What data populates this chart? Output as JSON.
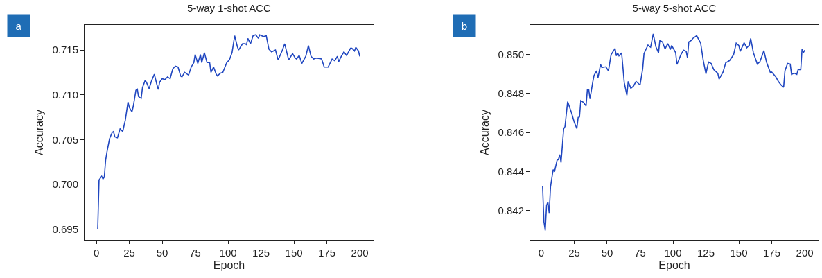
{
  "chart_data": [
    {
      "type": "line",
      "title": "5-way 1-shot ACC",
      "xlabel": "Epoch",
      "ylabel": "Accuracy",
      "annotations": [
        "a"
      ],
      "color": "#1f46c0",
      "xlim": [
        -9,
        210.5
      ],
      "ylim": [
        0.6938,
        0.7178
      ],
      "xticks": [
        0,
        25,
        50,
        75,
        100,
        125,
        150,
        175,
        200
      ],
      "yticks": [
        {
          "value": 0.695,
          "label": "0.695"
        },
        {
          "value": 0.7,
          "label": "0.700"
        },
        {
          "value": 0.705,
          "label": "0.705"
        },
        {
          "value": 0.71,
          "label": "0.710"
        },
        {
          "value": 0.715,
          "label": "0.715"
        }
      ],
      "x": [
        1,
        2,
        4,
        5,
        6,
        7,
        8,
        10,
        12,
        13,
        14,
        16,
        18,
        20,
        22,
        24,
        25,
        27,
        28,
        30,
        31,
        32,
        34,
        35,
        37,
        38,
        40,
        42,
        44,
        46,
        47,
        48,
        50,
        52,
        54,
        56,
        58,
        60,
        62,
        64,
        65,
        67,
        70,
        72,
        74,
        75,
        77,
        79,
        80,
        82,
        84,
        86,
        87,
        89,
        91,
        92,
        94,
        96,
        99,
        101,
        103,
        105,
        107,
        108,
        111,
        113,
        114,
        115,
        117,
        119,
        121,
        123,
        124,
        127,
        129,
        131,
        133,
        136,
        138,
        141,
        143,
        146,
        149,
        151,
        152,
        154,
        156,
        159,
        161,
        163,
        165,
        167,
        171,
        173,
        176,
        179,
        181,
        183,
        184,
        186,
        188,
        190,
        193,
        194,
        196,
        197,
        199,
        200
      ],
      "values": [
        0.695,
        0.7005,
        0.7009,
        0.7006,
        0.7008,
        0.7027,
        0.7036,
        0.7051,
        0.7058,
        0.7059,
        0.7053,
        0.7052,
        0.7062,
        0.7059,
        0.7072,
        0.7092,
        0.7086,
        0.7081,
        0.7087,
        0.7105,
        0.7107,
        0.7098,
        0.7096,
        0.7108,
        0.7116,
        0.7114,
        0.7107,
        0.7116,
        0.7123,
        0.7111,
        0.7106,
        0.7114,
        0.7118,
        0.7117,
        0.712,
        0.7118,
        0.7129,
        0.7132,
        0.7131,
        0.7121,
        0.712,
        0.7125,
        0.7122,
        0.7131,
        0.7136,
        0.7145,
        0.7135,
        0.7145,
        0.7136,
        0.7147,
        0.7136,
        0.7136,
        0.7125,
        0.7131,
        0.7123,
        0.7121,
        0.7124,
        0.7125,
        0.7136,
        0.7139,
        0.7147,
        0.7166,
        0.7154,
        0.715,
        0.7157,
        0.7157,
        0.7156,
        0.7163,
        0.7157,
        0.7166,
        0.7167,
        0.7163,
        0.7167,
        0.7165,
        0.7166,
        0.7151,
        0.7148,
        0.715,
        0.7139,
        0.7149,
        0.7157,
        0.7139,
        0.7146,
        0.7141,
        0.714,
        0.7144,
        0.7135,
        0.7143,
        0.7155,
        0.7143,
        0.714,
        0.7141,
        0.714,
        0.7131,
        0.7131,
        0.714,
        0.7138,
        0.7143,
        0.7137,
        0.7143,
        0.7148,
        0.7144,
        0.7152,
        0.7152,
        0.7149,
        0.7153,
        0.7149,
        0.7143
      ]
    },
    {
      "type": "line",
      "title": "5-way 5-shot ACC",
      "xlabel": "Epoch",
      "ylabel": "Accuracy",
      "annotations": [
        "b"
      ],
      "color": "#1f46c0",
      "xlim": [
        -8.4,
        210.5
      ],
      "ylim": [
        0.8405,
        0.8515
      ],
      "xticks": [
        0,
        25,
        50,
        75,
        100,
        125,
        150,
        175,
        200
      ],
      "yticks": [
        {
          "value": 0.842,
          "label": "0.842"
        },
        {
          "value": 0.844,
          "label": "0.844"
        },
        {
          "value": 0.846,
          "label": "0.846"
        },
        {
          "value": 0.848,
          "label": "0.848"
        },
        {
          "value": 0.85,
          "label": "0.850"
        }
      ],
      "x": [
        1,
        2,
        3,
        4,
        5,
        6,
        7,
        9,
        10,
        12,
        13,
        14,
        15,
        17,
        18,
        20,
        23,
        25,
        27,
        28,
        29,
        30,
        32,
        34,
        35,
        36,
        37,
        39,
        40,
        42,
        43,
        45,
        46,
        49,
        51,
        53,
        56,
        57,
        58,
        59,
        61,
        63,
        65,
        66,
        68,
        70,
        72,
        75,
        77,
        78,
        80,
        81,
        83,
        85,
        87,
        89,
        90,
        92,
        94,
        96,
        98,
        99,
        102,
        103,
        106,
        108,
        110,
        111,
        112,
        114,
        115,
        118,
        121,
        123,
        125,
        127,
        129,
        131,
        134,
        135,
        138,
        140,
        143,
        146,
        148,
        150,
        151,
        154,
        156,
        158,
        159,
        161,
        164,
        166,
        169,
        171,
        174,
        175,
        178,
        180,
        182,
        184,
        185,
        187,
        189,
        190,
        192,
        194,
        195,
        197,
        198,
        199,
        200
      ],
      "values": [
        0.84323,
        0.84143,
        0.84098,
        0.84226,
        0.84244,
        0.84188,
        0.84321,
        0.8441,
        0.84398,
        0.84458,
        0.84461,
        0.84487,
        0.84446,
        0.84618,
        0.8463,
        0.84758,
        0.84699,
        0.84653,
        0.8462,
        0.84677,
        0.84679,
        0.84763,
        0.84754,
        0.84736,
        0.8482,
        0.8482,
        0.84772,
        0.84855,
        0.84891,
        0.84915,
        0.84877,
        0.84948,
        0.84932,
        0.84936,
        0.84915,
        0.84998,
        0.8503,
        0.84992,
        0.85007,
        0.84992,
        0.85007,
        0.84855,
        0.8479,
        0.84861,
        0.84826,
        0.84837,
        0.84861,
        0.84843,
        0.84926,
        0.85004,
        0.85033,
        0.85047,
        0.85036,
        0.85104,
        0.85039,
        0.85007,
        0.85071,
        0.85063,
        0.85027,
        0.85055,
        0.85024,
        0.85045,
        0.85009,
        0.84948,
        0.84998,
        0.85021,
        0.85015,
        0.84982,
        0.85063,
        0.85071,
        0.85081,
        0.85095,
        0.85057,
        0.84968,
        0.849,
        0.8496,
        0.84953,
        0.84921,
        0.84903,
        0.84873,
        0.84909,
        0.84956,
        0.84968,
        0.84998,
        0.85057,
        0.85045,
        0.85015,
        0.85059,
        0.85033,
        0.85047,
        0.85081,
        0.85009,
        0.8495,
        0.84962,
        0.85019,
        0.8496,
        0.84905,
        0.84909,
        0.84885,
        0.84861,
        0.84843,
        0.84831,
        0.84915,
        0.84953,
        0.8495,
        0.84897,
        0.84903,
        0.84897,
        0.84921,
        0.84921,
        0.85027,
        0.85009,
        0.85021
      ]
    }
  ]
}
